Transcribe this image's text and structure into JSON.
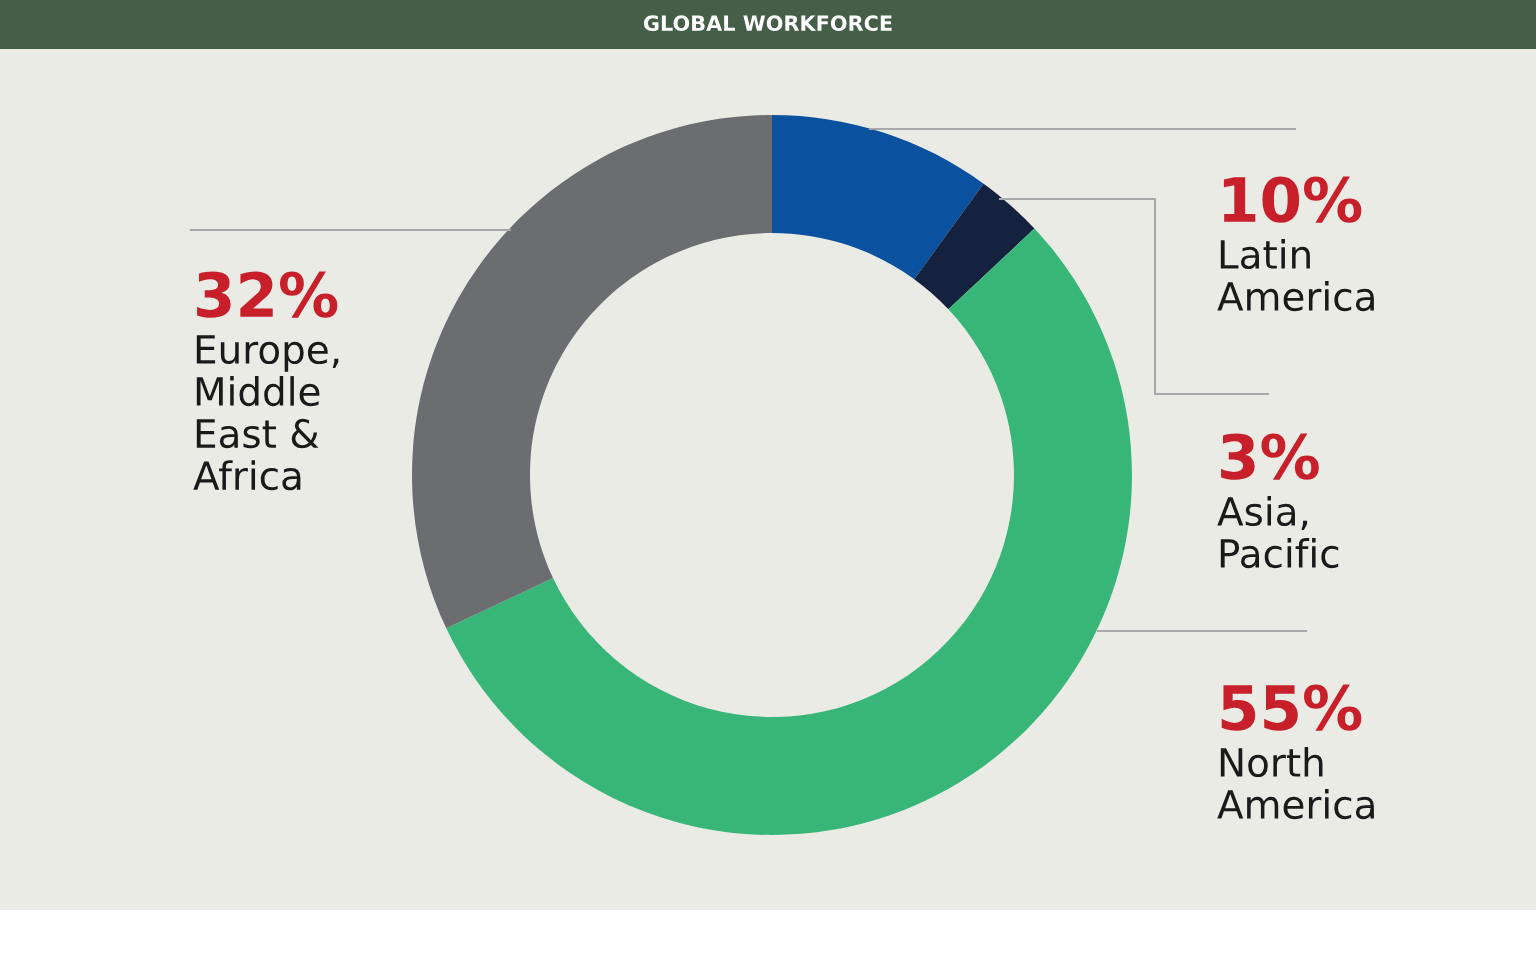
{
  "chart_data": {
    "type": "donut",
    "title": "GLOBAL WORKFORCE",
    "categories": [
      "Latin\nAmerica",
      "Asia,\nPacific",
      "North\nAmerica",
      "Europe,\nMiddle\nEast &\nAfrica"
    ],
    "values": [
      10,
      3,
      55,
      32
    ],
    "colors": [
      "#0a52a0",
      "#14213f",
      "#38b677",
      "#6c6d70"
    ],
    "value_labels": [
      "10%",
      "3%",
      "55%",
      "32%"
    ],
    "legend": false
  }
}
